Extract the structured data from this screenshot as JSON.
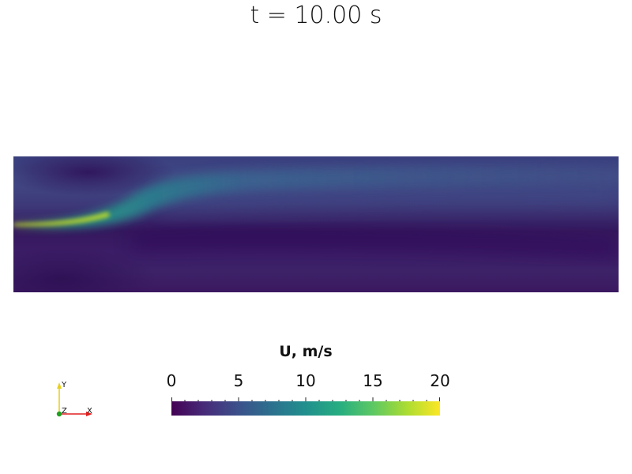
{
  "title": "t = 10.00 s",
  "field_name": "U, m/s",
  "colorbar": {
    "range": [
      0,
      20
    ],
    "tick_labels": [
      "0",
      "5",
      "10",
      "15",
      "20"
    ],
    "minor_tick_step": 1,
    "colormap": "viridis",
    "colors": [
      "#440154",
      "#472c7a",
      "#3b518b",
      "#2c718e",
      "#21908d",
      "#27ad81",
      "#5cc863",
      "#aadc32",
      "#fde725"
    ]
  },
  "axes_triad": {
    "y_label": "Y",
    "z_label": "Z",
    "x_label": "X",
    "colors": {
      "y": "#e8d020",
      "z": "#20a020",
      "x": "#e02020"
    }
  }
}
